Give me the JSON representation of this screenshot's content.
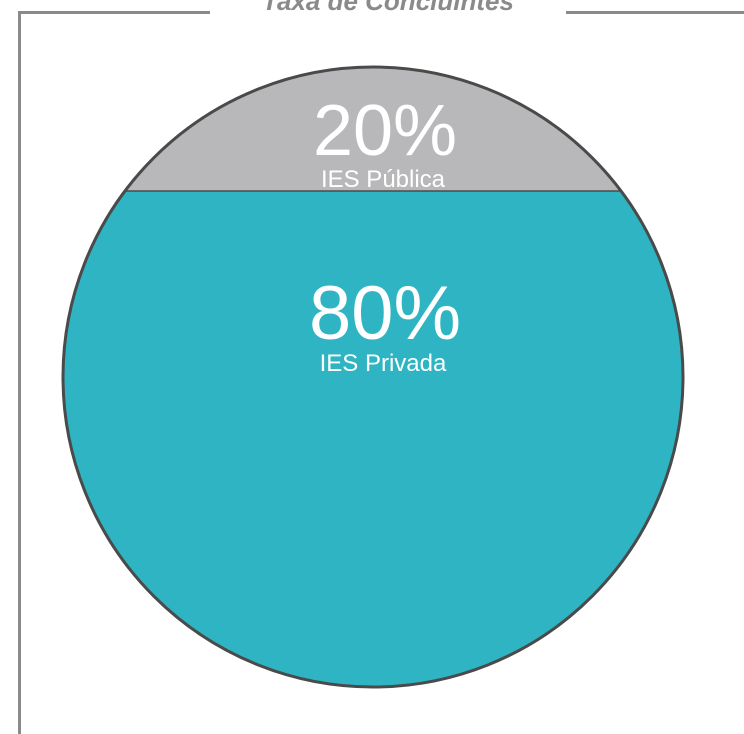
{
  "chart_data": {
    "type": "pie",
    "title": "Taxa de Concluintes",
    "slices": [
      {
        "label": "IES Pública",
        "value_label": "20%",
        "value": 20,
        "color": "#b8b8ba"
      },
      {
        "label": "IES Privada",
        "value_label": "80%",
        "value": 80,
        "color": "#2eb4c2"
      }
    ],
    "outline_color": "#4a4a4a",
    "frame_color": "#8a8a8a"
  }
}
